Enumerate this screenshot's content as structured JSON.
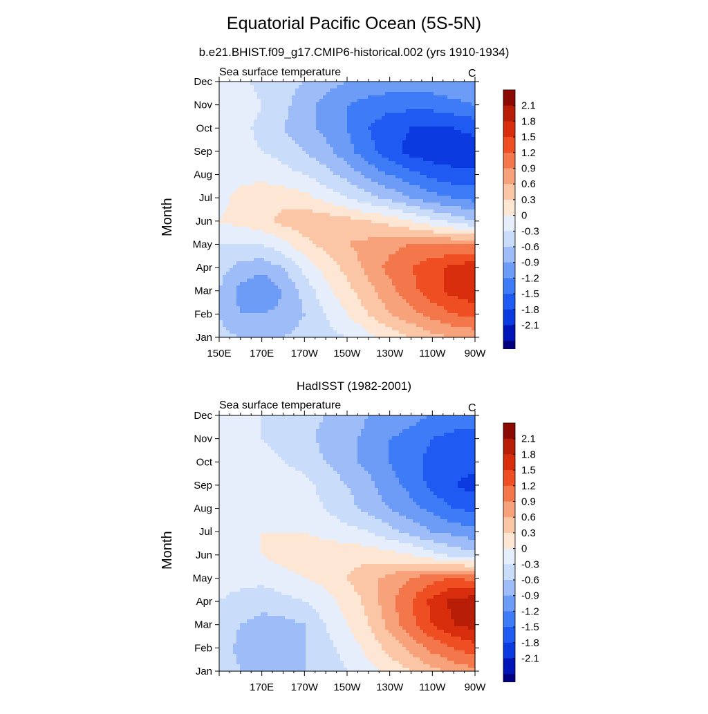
{
  "title": "Equatorial Pacific Ocean (5S-5N)",
  "colorbar": {
    "levels": [
      -2.1,
      -1.8,
      -1.5,
      -1.2,
      -0.9,
      -0.6,
      -0.3,
      0,
      0.3,
      0.6,
      0.9,
      1.2,
      1.5,
      1.8,
      2.1
    ],
    "tick_labels": [
      "-2.1",
      "-1.8",
      "-1.5",
      "-1.2",
      "-0.9",
      "-0.6",
      "-0.3",
      "0",
      "0.3",
      "0.6",
      "0.9",
      "1.2",
      "1.5",
      "1.8",
      "2.1"
    ],
    "colors": [
      "#00007e",
      "#0015b8",
      "#0a3ae0",
      "#1f5af3",
      "#3e7cf7",
      "#6d9cf6",
      "#9dbcf8",
      "#c9dcfa",
      "#e6eefc",
      "#fde6d3",
      "#fbc6a6",
      "#f8a27c",
      "#f4764b",
      "#ef4d22",
      "#d92e0e",
      "#b81d08",
      "#8c0a04"
    ]
  },
  "chart_data": [
    {
      "type": "heatmap",
      "title": "b.e21.BHIST.f09_g17.CMIP6-historical.002 (yrs 1910-1934)",
      "left_label": "Sea surface temperature",
      "right_label": "C",
      "ylabel": "Month",
      "x_tick_labels": [
        "150E",
        "170E",
        "170W",
        "150W",
        "130W",
        "110W",
        "90W"
      ],
      "y_tick_labels": [
        "Jan",
        "Feb",
        "Mar",
        "Apr",
        "May",
        "Jun",
        "Jul",
        "Aug",
        "Sep",
        "Oct",
        "Nov",
        "Dec"
      ],
      "x_range": [
        150,
        270
      ],
      "units": "C",
      "lon": [
        150,
        160,
        170,
        180,
        190,
        200,
        210,
        220,
        230,
        240,
        250,
        260,
        270
      ],
      "months": [
        "Jan",
        "Feb",
        "Mar",
        "Apr",
        "May",
        "Jun",
        "Jul",
        "Aug",
        "Sep",
        "Oct",
        "Nov",
        "Dec"
      ],
      "values": [
        [
          -0.2,
          -0.3,
          -0.3,
          -0.3,
          -0.2,
          -0.1,
          0.0,
          0.2,
          0.4,
          0.6,
          0.8,
          0.9,
          1.0
        ],
        [
          -0.3,
          -0.6,
          -0.6,
          -0.5,
          -0.3,
          0.0,
          0.3,
          0.6,
          0.9,
          1.1,
          1.3,
          1.5,
          1.6
        ],
        [
          -0.3,
          -0.7,
          -0.9,
          -0.6,
          -0.2,
          0.2,
          0.5,
          0.8,
          1.1,
          1.4,
          1.7,
          1.9,
          2.0
        ],
        [
          -0.2,
          -0.4,
          -0.5,
          -0.3,
          0.1,
          0.4,
          0.7,
          1.0,
          1.3,
          1.5,
          1.7,
          1.9,
          2.0
        ],
        [
          0.0,
          0.0,
          0.0,
          0.2,
          0.5,
          0.7,
          0.9,
          1.0,
          1.1,
          1.2,
          1.2,
          1.2,
          1.2
        ],
        [
          0.3,
          0.4,
          0.5,
          0.7,
          0.8,
          0.8,
          0.7,
          0.6,
          0.5,
          0.3,
          0.1,
          -0.1,
          -0.3
        ],
        [
          0.2,
          0.4,
          0.5,
          0.5,
          0.4,
          0.2,
          0.0,
          -0.2,
          -0.4,
          -0.6,
          -0.8,
          -0.9,
          -1.0
        ],
        [
          0.2,
          0.2,
          0.2,
          0.1,
          0.0,
          -0.2,
          -0.4,
          -0.7,
          -0.9,
          -1.1,
          -1.3,
          -1.4,
          -1.4
        ],
        [
          0.1,
          0.1,
          0.0,
          -0.1,
          -0.3,
          -0.5,
          -0.8,
          -1.1,
          -1.4,
          -1.6,
          -1.7,
          -1.7,
          -1.7
        ],
        [
          0.2,
          0.1,
          -0.1,
          -0.3,
          -0.5,
          -0.7,
          -0.9,
          -1.2,
          -1.4,
          -1.5,
          -1.5,
          -1.5,
          -1.4
        ],
        [
          0.3,
          0.2,
          0.0,
          -0.2,
          -0.5,
          -0.7,
          -0.9,
          -1.0,
          -1.1,
          -1.1,
          -1.1,
          -1.0,
          -0.9
        ],
        [
          0.2,
          0.1,
          -0.1,
          -0.2,
          -0.3,
          -0.5,
          -0.6,
          -0.7,
          -0.7,
          -0.7,
          -0.7,
          -0.6,
          -0.6
        ]
      ]
    },
    {
      "type": "heatmap",
      "title": "HadISST (1982-2001)",
      "left_label": "Sea surface temperature",
      "right_label": "C",
      "ylabel": "Month",
      "x_tick_labels": [
        "170E",
        "170W",
        "150W",
        "130W",
        "110W",
        "90W"
      ],
      "y_tick_labels": [
        "Jan",
        "Feb",
        "Mar",
        "Apr",
        "May",
        "Jun",
        "Jul",
        "Aug",
        "Sep",
        "Oct",
        "Nov",
        "Dec"
      ],
      "x_range": [
        150,
        270
      ],
      "units": "C",
      "lon": [
        150,
        160,
        170,
        180,
        190,
        200,
        210,
        220,
        230,
        240,
        250,
        260,
        270
      ],
      "months": [
        "Jan",
        "Feb",
        "Mar",
        "Apr",
        "May",
        "Jun",
        "Jul",
        "Aug",
        "Sep",
        "Oct",
        "Nov",
        "Dec"
      ],
      "values": [
        [
          -0.1,
          -0.3,
          -0.4,
          -0.4,
          -0.3,
          -0.2,
          0.0,
          0.2,
          0.4,
          0.6,
          0.8,
          1.0,
          1.1
        ],
        [
          -0.1,
          -0.4,
          -0.5,
          -0.4,
          -0.3,
          -0.1,
          0.1,
          0.4,
          0.7,
          1.0,
          1.3,
          1.5,
          1.7
        ],
        [
          -0.1,
          -0.3,
          -0.4,
          -0.4,
          -0.3,
          0.0,
          0.3,
          0.6,
          1.0,
          1.4,
          1.8,
          2.1,
          2.2
        ],
        [
          0.0,
          -0.1,
          -0.2,
          -0.1,
          0.0,
          0.2,
          0.4,
          0.7,
          1.1,
          1.5,
          1.9,
          2.2,
          2.3
        ],
        [
          0.1,
          0.1,
          0.1,
          0.2,
          0.3,
          0.4,
          0.6,
          0.8,
          1.0,
          1.2,
          1.4,
          1.5,
          1.4
        ],
        [
          0.2,
          0.2,
          0.3,
          0.4,
          0.5,
          0.5,
          0.5,
          0.5,
          0.4,
          0.3,
          0.1,
          -0.1,
          -0.2
        ],
        [
          0.1,
          0.2,
          0.3,
          0.3,
          0.3,
          0.2,
          0.1,
          0.0,
          -0.2,
          -0.4,
          -0.6,
          -0.7,
          -0.8
        ],
        [
          0.0,
          0.1,
          0.2,
          0.2,
          0.1,
          0.0,
          -0.2,
          -0.4,
          -0.6,
          -0.8,
          -1.0,
          -1.2,
          -1.3
        ],
        [
          0.1,
          0.2,
          0.3,
          0.2,
          0.1,
          -0.1,
          -0.3,
          -0.5,
          -0.8,
          -1.0,
          -1.3,
          -1.5,
          -1.6
        ],
        [
          0.1,
          0.1,
          0.1,
          0.0,
          -0.1,
          -0.3,
          -0.5,
          -0.7,
          -0.9,
          -1.1,
          -1.3,
          -1.4,
          -1.4
        ],
        [
          0.2,
          0.1,
          0.0,
          -0.1,
          -0.2,
          -0.4,
          -0.5,
          -0.7,
          -0.9,
          -1.0,
          -1.2,
          -1.3,
          -1.3
        ],
        [
          0.2,
          0.1,
          0.0,
          -0.1,
          -0.2,
          -0.3,
          -0.4,
          -0.6,
          -0.7,
          -0.8,
          -0.9,
          -1.0,
          -1.0
        ]
      ]
    }
  ]
}
